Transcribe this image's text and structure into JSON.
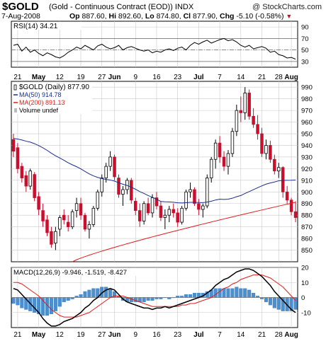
{
  "header": {
    "symbol": "$GOLD",
    "description": "(Gold - Continuous Contract (EOD)) INDX",
    "watermark": "@ StockCharts.com",
    "date": "7-Aug-2008",
    "quote": {
      "open_label": "Op",
      "open": "887.60",
      "high_label": "Hi",
      "high": "892.60",
      "low_label": "Lo",
      "low": "874.80",
      "close_label": "Cl",
      "close": "877.90",
      "change_label": "Chg",
      "change": "-5.10 (-0.58%)"
    }
  },
  "colors": {
    "up": "#000000",
    "down": "#c8102e",
    "ma50": "#1a2d8c",
    "ma200": "#e31b1b",
    "macd_line": "#000000",
    "signal_line": "#e31b1b",
    "histogram": "#4a8fcf",
    "grid": "#c9c9c9"
  },
  "x_labels": [
    "21",
    "May",
    "12",
    "19",
    "27",
    "Jun",
    "9",
    "16",
    "23",
    "Jul",
    "7",
    "14",
    "21",
    "28",
    "Aug"
  ],
  "chart_data": [
    {
      "type": "line",
      "title": "RSI(14) 34.21",
      "indicator": "RSI",
      "period": 14,
      "last_value": 34.21,
      "ylim": [
        20,
        100
      ],
      "y_ticks": [
        30,
        50,
        70,
        90
      ],
      "reference_lines": [
        30,
        50,
        70
      ],
      "values": [
        58,
        60,
        48,
        55,
        46,
        50,
        44,
        40,
        45,
        42,
        38,
        36,
        40,
        46,
        50,
        55,
        52,
        58,
        54,
        50,
        57,
        60,
        55,
        52,
        54,
        58,
        50,
        54,
        56,
        53,
        50,
        48,
        50,
        45,
        48,
        46,
        50,
        52,
        49,
        53,
        55,
        50,
        58,
        63,
        60,
        64,
        67,
        62,
        65,
        68,
        70,
        66,
        68,
        64,
        58,
        55,
        58,
        52,
        54,
        56,
        53,
        46,
        48,
        42,
        40,
        36,
        37,
        34
      ]
    },
    {
      "type": "candlestick",
      "title": "$GOLD (Daily) 877.90",
      "ylim": [
        840,
        995
      ],
      "y_ticks": [
        850,
        860,
        870,
        880,
        890,
        900,
        910,
        920,
        930,
        940,
        950,
        960,
        970,
        980,
        990
      ],
      "legend": [
        {
          "name": "$GOLD (Daily)",
          "value": "877.90",
          "key": "up"
        },
        {
          "name": "MA(50)",
          "value": "914.78",
          "key": "ma50"
        },
        {
          "name": "MA(200)",
          "value": "891.13",
          "key": "ma200"
        },
        {
          "name": "Volume undef",
          "value": "",
          "key": "volume"
        }
      ],
      "legend_position": "top-left",
      "ohlc": [
        [
          945,
          950,
          930,
          935
        ],
        [
          938,
          942,
          916,
          920
        ],
        [
          922,
          925,
          908,
          912
        ],
        [
          914,
          918,
          900,
          905
        ],
        [
          905,
          920,
          902,
          918
        ],
        [
          915,
          917,
          892,
          895
        ],
        [
          896,
          900,
          880,
          885
        ],
        [
          884,
          890,
          870,
          875
        ],
        [
          876,
          880,
          862,
          865
        ],
        [
          866,
          870,
          852,
          855
        ],
        [
          856,
          870,
          850,
          866
        ],
        [
          868,
          880,
          862,
          878
        ],
        [
          880,
          885,
          872,
          876
        ],
        [
          874,
          880,
          866,
          870
        ],
        [
          870,
          885,
          868,
          883
        ],
        [
          884,
          895,
          878,
          890
        ],
        [
          890,
          895,
          876,
          880
        ],
        [
          880,
          882,
          866,
          868
        ],
        [
          868,
          875,
          860,
          872
        ],
        [
          872,
          888,
          870,
          886
        ],
        [
          886,
          902,
          884,
          900
        ],
        [
          900,
          915,
          896,
          912
        ],
        [
          912,
          925,
          908,
          922
        ],
        [
          922,
          935,
          918,
          930
        ],
        [
          930,
          932,
          910,
          913
        ],
        [
          912,
          915,
          895,
          898
        ],
        [
          898,
          905,
          888,
          902
        ],
        [
          902,
          912,
          898,
          910
        ],
        [
          910,
          912,
          890,
          893
        ],
        [
          892,
          895,
          880,
          884
        ],
        [
          884,
          890,
          870,
          875
        ],
        [
          875,
          892,
          872,
          890
        ],
        [
          890,
          895,
          880,
          882
        ],
        [
          882,
          898,
          878,
          895
        ],
        [
          895,
          900,
          885,
          888
        ],
        [
          888,
          892,
          875,
          878
        ],
        [
          878,
          885,
          868,
          880
        ],
        [
          880,
          888,
          874,
          885
        ],
        [
          885,
          890,
          878,
          882
        ],
        [
          882,
          886,
          870,
          874
        ],
        [
          874,
          888,
          872,
          886
        ],
        [
          886,
          902,
          884,
          900
        ],
        [
          900,
          908,
          895,
          902
        ],
        [
          902,
          904,
          888,
          890
        ],
        [
          890,
          894,
          880,
          885
        ],
        [
          885,
          890,
          878,
          888
        ],
        [
          888,
          915,
          886,
          912
        ],
        [
          912,
          930,
          908,
          928
        ],
        [
          928,
          945,
          920,
          942
        ],
        [
          942,
          948,
          925,
          930
        ],
        [
          930,
          935,
          918,
          922
        ],
        [
          922,
          936,
          915,
          933
        ],
        [
          933,
          955,
          930,
          952
        ],
        [
          952,
          975,
          948,
          970
        ],
        [
          970,
          982,
          960,
          968
        ],
        [
          968,
          990,
          962,
          985
        ],
        [
          985,
          988,
          962,
          965
        ],
        [
          965,
          972,
          955,
          958
        ],
        [
          958,
          966,
          945,
          950
        ],
        [
          950,
          955,
          930,
          933
        ],
        [
          933,
          945,
          928,
          940
        ],
        [
          940,
          944,
          925,
          928
        ],
        [
          928,
          932,
          915,
          918
        ],
        [
          918,
          925,
          912,
          921
        ],
        [
          921,
          922,
          895,
          900
        ],
        [
          900,
          905,
          890,
          893
        ],
        [
          893,
          895,
          880,
          883
        ],
        [
          883,
          892,
          874,
          878
        ]
      ]
    },
    {
      "type": "line",
      "title": "MACD(12,26,9) -9.946, -1.519, -8.427",
      "indicator": "MACD",
      "params": [
        12,
        26,
        9
      ],
      "macd_last": -9.946,
      "signal_last": -1.519,
      "histogram_last": -8.427,
      "ylim": [
        -20,
        20
      ],
      "y_ticks": [
        -10,
        0,
        10,
        20
      ],
      "series": [
        {
          "name": "MACD",
          "key": "macd_line",
          "values": [
            6,
            5,
            2,
            -1,
            -4,
            -7,
            -10,
            -14,
            -17,
            -19,
            -19,
            -18,
            -16,
            -15,
            -14,
            -12,
            -10,
            -7,
            -5,
            -2,
            0,
            3,
            5,
            6,
            5,
            2,
            -1,
            -3,
            -4,
            -5,
            -6,
            -7,
            -7,
            -8,
            -7,
            -7,
            -6,
            -7,
            -6,
            -5,
            -4,
            -3,
            -2,
            -1,
            0,
            1,
            3,
            5,
            8,
            10,
            12,
            13,
            15,
            17,
            18,
            19,
            19,
            18,
            16,
            14,
            11,
            8,
            4,
            1,
            -2,
            -5,
            -8,
            -10
          ]
        },
        {
          "name": "Signal",
          "key": "signal_line",
          "values": [
            10,
            10,
            9,
            7,
            5,
            3,
            1,
            -2,
            -5,
            -8,
            -10,
            -12,
            -13,
            -13,
            -13,
            -13,
            -12,
            -11,
            -10,
            -8,
            -6,
            -4,
            -2,
            0,
            1,
            1,
            1,
            0,
            -1,
            -2,
            -3,
            -4,
            -5,
            -6,
            -6,
            -6,
            -6,
            -6,
            -6,
            -6,
            -5,
            -5,
            -4,
            -4,
            -3,
            -2,
            -1,
            0,
            2,
            4,
            6,
            7,
            9,
            10,
            12,
            13,
            14,
            15,
            15,
            15,
            14,
            13,
            11,
            9,
            7,
            4,
            1,
            -2
          ]
        },
        {
          "name": "Histogram",
          "key": "histogram",
          "type": "bar",
          "values": [
            -4,
            -5,
            -7,
            -8,
            -9,
            -10,
            -11,
            -12,
            -12,
            -11,
            -9,
            -6,
            -3,
            -2,
            -1,
            1,
            2,
            4,
            5,
            6,
            6,
            7,
            7,
            6,
            4,
            1,
            -2,
            -3,
            -3,
            -3,
            -3,
            -3,
            -2,
            -2,
            -1,
            -1,
            0,
            -1,
            0,
            1,
            1,
            2,
            2,
            3,
            3,
            3,
            4,
            5,
            6,
            6,
            6,
            6,
            6,
            7,
            6,
            6,
            5,
            3,
            1,
            -1,
            -3,
            -5,
            -7,
            -8,
            -9,
            -9,
            -9,
            -8
          ]
        }
      ]
    }
  ]
}
